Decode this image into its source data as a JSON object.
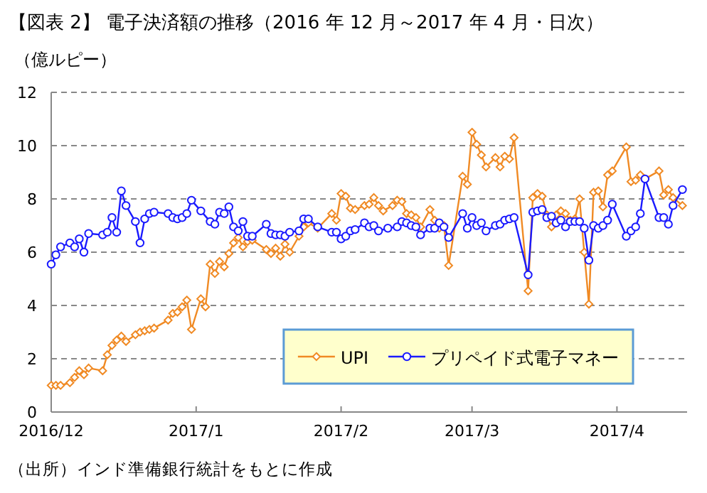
{
  "chart_data": {
    "type": "line",
    "title": "【図表 2】 電子決済額の推移（2016 年 12 月～2017 年 4 月・日次）",
    "ylabel": "（億ルピー）",
    "annotations": [
      "（出所）インド準備銀行統計をもとに作成"
    ],
    "xlim": [
      "2016-12-01",
      "2017-04-16"
    ],
    "xticks": [
      {
        "value": "2016-12-01",
        "label": "2016/12"
      },
      {
        "value": "2017-01-01",
        "label": "2017/1"
      },
      {
        "value": "2017-02-01",
        "label": "2017/2"
      },
      {
        "value": "2017-03-01",
        "label": "2017/3"
      },
      {
        "value": "2017-04-01",
        "label": "2017/4"
      }
    ],
    "ylim": [
      0,
      12
    ],
    "yticks": [
      0,
      2,
      4,
      6,
      8,
      10,
      12
    ],
    "grid": "y",
    "legend": "bottom right",
    "line_style": "solid",
    "series": [
      {
        "name": "UPI",
        "color": "#f08a24",
        "marker": "diamond",
        "x": [
          "2016-12-01",
          "2016-12-02",
          "2016-12-03",
          "2016-12-05",
          "2016-12-06",
          "2016-12-07",
          "2016-12-08",
          "2016-12-09",
          "2016-12-12",
          "2016-12-13",
          "2016-12-14",
          "2016-12-15",
          "2016-12-16",
          "2016-12-17",
          "2016-12-19",
          "2016-12-20",
          "2016-12-21",
          "2016-12-22",
          "2016-12-23",
          "2016-12-26",
          "2016-12-27",
          "2016-12-28",
          "2016-12-29",
          "2016-12-30",
          "2016-12-31",
          "2017-01-02",
          "2017-01-03",
          "2017-01-04",
          "2017-01-05",
          "2017-01-06",
          "2017-01-07",
          "2017-01-08",
          "2017-01-09",
          "2017-01-10",
          "2017-01-11",
          "2017-01-12",
          "2017-01-13",
          "2017-01-16",
          "2017-01-17",
          "2017-01-18",
          "2017-01-19",
          "2017-01-20",
          "2017-01-21",
          "2017-01-23",
          "2017-01-24",
          "2017-01-25",
          "2017-01-27",
          "2017-01-30",
          "2017-01-31",
          "2017-02-01",
          "2017-02-02",
          "2017-02-03",
          "2017-02-04",
          "2017-02-06",
          "2017-02-07",
          "2017-02-08",
          "2017-02-09",
          "2017-02-10",
          "2017-02-12",
          "2017-02-13",
          "2017-02-14",
          "2017-02-15",
          "2017-02-16",
          "2017-02-17",
          "2017-02-18",
          "2017-02-20",
          "2017-02-21",
          "2017-02-22",
          "2017-02-23",
          "2017-02-24",
          "2017-02-27",
          "2017-02-28",
          "2017-03-01",
          "2017-03-02",
          "2017-03-03",
          "2017-03-04",
          "2017-03-06",
          "2017-03-07",
          "2017-03-08",
          "2017-03-09",
          "2017-03-10",
          "2017-03-13",
          "2017-03-14",
          "2017-03-15",
          "2017-03-16",
          "2017-03-17",
          "2017-03-18",
          "2017-03-19",
          "2017-03-20",
          "2017-03-21",
          "2017-03-22",
          "2017-03-23",
          "2017-03-24",
          "2017-03-25",
          "2017-03-26",
          "2017-03-27",
          "2017-03-28",
          "2017-03-29",
          "2017-03-30",
          "2017-03-31",
          "2017-04-03",
          "2017-04-04",
          "2017-04-05",
          "2017-04-06",
          "2017-04-07",
          "2017-04-10",
          "2017-04-11",
          "2017-04-12",
          "2017-04-13",
          "2017-04-15"
        ],
        "values": [
          1.0,
          1.0,
          1.0,
          1.1,
          1.3,
          1.55,
          1.4,
          1.65,
          1.55,
          2.15,
          2.5,
          2.7,
          2.85,
          2.65,
          2.9,
          3.0,
          3.05,
          3.1,
          3.15,
          3.45,
          3.7,
          3.75,
          3.95,
          4.2,
          3.1,
          4.25,
          3.95,
          5.55,
          5.2,
          5.65,
          5.45,
          5.95,
          6.35,
          6.55,
          6.2,
          6.4,
          6.45,
          6.1,
          5.95,
          6.15,
          5.85,
          6.3,
          6.0,
          6.6,
          6.95,
          7.1,
          6.9,
          7.45,
          7.2,
          8.2,
          8.1,
          7.65,
          7.6,
          7.75,
          7.8,
          8.05,
          7.75,
          7.55,
          7.75,
          7.95,
          7.9,
          7.45,
          7.4,
          7.3,
          6.95,
          7.6,
          7.2,
          6.9,
          7.0,
          5.5,
          8.85,
          8.55,
          10.5,
          10.05,
          9.65,
          9.2,
          9.55,
          9.2,
          9.6,
          9.5,
          10.3,
          4.55,
          8.05,
          8.2,
          8.1,
          7.4,
          6.95,
          7.4,
          7.55,
          7.45,
          7.2,
          7.25,
          8.0,
          6.0,
          4.05,
          8.25,
          8.3,
          7.7,
          8.9,
          9.05,
          9.95,
          8.65,
          8.7,
          8.9,
          8.75,
          9.05,
          8.15,
          8.35,
          8.05,
          7.75
        ]
      },
      {
        "name": "プリペイド式電子マネー",
        "color": "#1a1aff",
        "marker": "circle",
        "x": [
          "2016-12-01",
          "2016-12-02",
          "2016-12-03",
          "2016-12-05",
          "2016-12-06",
          "2016-12-07",
          "2016-12-08",
          "2016-12-09",
          "2016-12-12",
          "2016-12-13",
          "2016-12-14",
          "2016-12-15",
          "2016-12-16",
          "2016-12-17",
          "2016-12-19",
          "2016-12-20",
          "2016-12-21",
          "2016-12-22",
          "2016-12-23",
          "2016-12-26",
          "2016-12-27",
          "2016-12-28",
          "2016-12-29",
          "2016-12-30",
          "2016-12-31",
          "2017-01-02",
          "2017-01-04",
          "2017-01-05",
          "2017-01-06",
          "2017-01-07",
          "2017-01-08",
          "2017-01-09",
          "2017-01-10",
          "2017-01-11",
          "2017-01-12",
          "2017-01-13",
          "2017-01-16",
          "2017-01-17",
          "2017-01-18",
          "2017-01-19",
          "2017-01-20",
          "2017-01-21",
          "2017-01-23",
          "2017-01-24",
          "2017-01-25",
          "2017-01-27",
          "2017-01-30",
          "2017-01-31",
          "2017-02-01",
          "2017-02-02",
          "2017-02-03",
          "2017-02-04",
          "2017-02-06",
          "2017-02-07",
          "2017-02-08",
          "2017-02-09",
          "2017-02-11",
          "2017-02-13",
          "2017-02-14",
          "2017-02-15",
          "2017-02-16",
          "2017-02-17",
          "2017-02-18",
          "2017-02-20",
          "2017-02-21",
          "2017-02-22",
          "2017-02-23",
          "2017-02-24",
          "2017-02-27",
          "2017-02-28",
          "2017-03-01",
          "2017-03-02",
          "2017-03-03",
          "2017-03-04",
          "2017-03-06",
          "2017-03-07",
          "2017-03-08",
          "2017-03-09",
          "2017-03-10",
          "2017-03-13",
          "2017-03-14",
          "2017-03-15",
          "2017-03-16",
          "2017-03-17",
          "2017-03-18",
          "2017-03-19",
          "2017-03-20",
          "2017-03-21",
          "2017-03-22",
          "2017-03-23",
          "2017-03-24",
          "2017-03-25",
          "2017-03-26",
          "2017-03-27",
          "2017-03-28",
          "2017-03-29",
          "2017-03-30",
          "2017-03-31",
          "2017-04-03",
          "2017-04-04",
          "2017-04-05",
          "2017-04-06",
          "2017-04-07",
          "2017-04-10",
          "2017-04-11",
          "2017-04-12",
          "2017-04-13",
          "2017-04-15"
        ],
        "values": [
          5.55,
          5.9,
          6.2,
          6.35,
          6.2,
          6.5,
          6.0,
          6.7,
          6.65,
          6.75,
          7.3,
          6.75,
          8.3,
          7.75,
          7.15,
          6.35,
          7.25,
          7.45,
          7.5,
          7.45,
          7.3,
          7.25,
          7.3,
          7.45,
          7.95,
          7.55,
          7.15,
          7.05,
          7.5,
          7.45,
          7.7,
          6.95,
          6.8,
          7.15,
          6.6,
          6.6,
          7.05,
          6.7,
          6.65,
          6.65,
          6.6,
          6.75,
          6.8,
          7.25,
          7.25,
          6.95,
          6.75,
          6.75,
          6.5,
          6.6,
          6.8,
          6.85,
          7.1,
          6.95,
          7.0,
          6.8,
          6.9,
          6.95,
          7.15,
          7.1,
          7.0,
          6.95,
          6.65,
          6.9,
          6.9,
          7.1,
          6.95,
          6.55,
          7.45,
          6.9,
          7.3,
          7.0,
          7.1,
          6.8,
          7.0,
          7.05,
          7.2,
          7.25,
          7.3,
          5.15,
          7.5,
          7.55,
          7.6,
          7.3,
          7.35,
          7.1,
          7.2,
          6.95,
          7.15,
          7.15,
          7.15,
          6.9,
          5.7,
          7.0,
          6.9,
          7.0,
          7.2,
          7.8,
          6.6,
          6.8,
          6.95,
          7.45,
          8.75,
          7.3,
          7.3,
          7.05,
          7.75,
          8.35
        ]
      }
    ]
  }
}
